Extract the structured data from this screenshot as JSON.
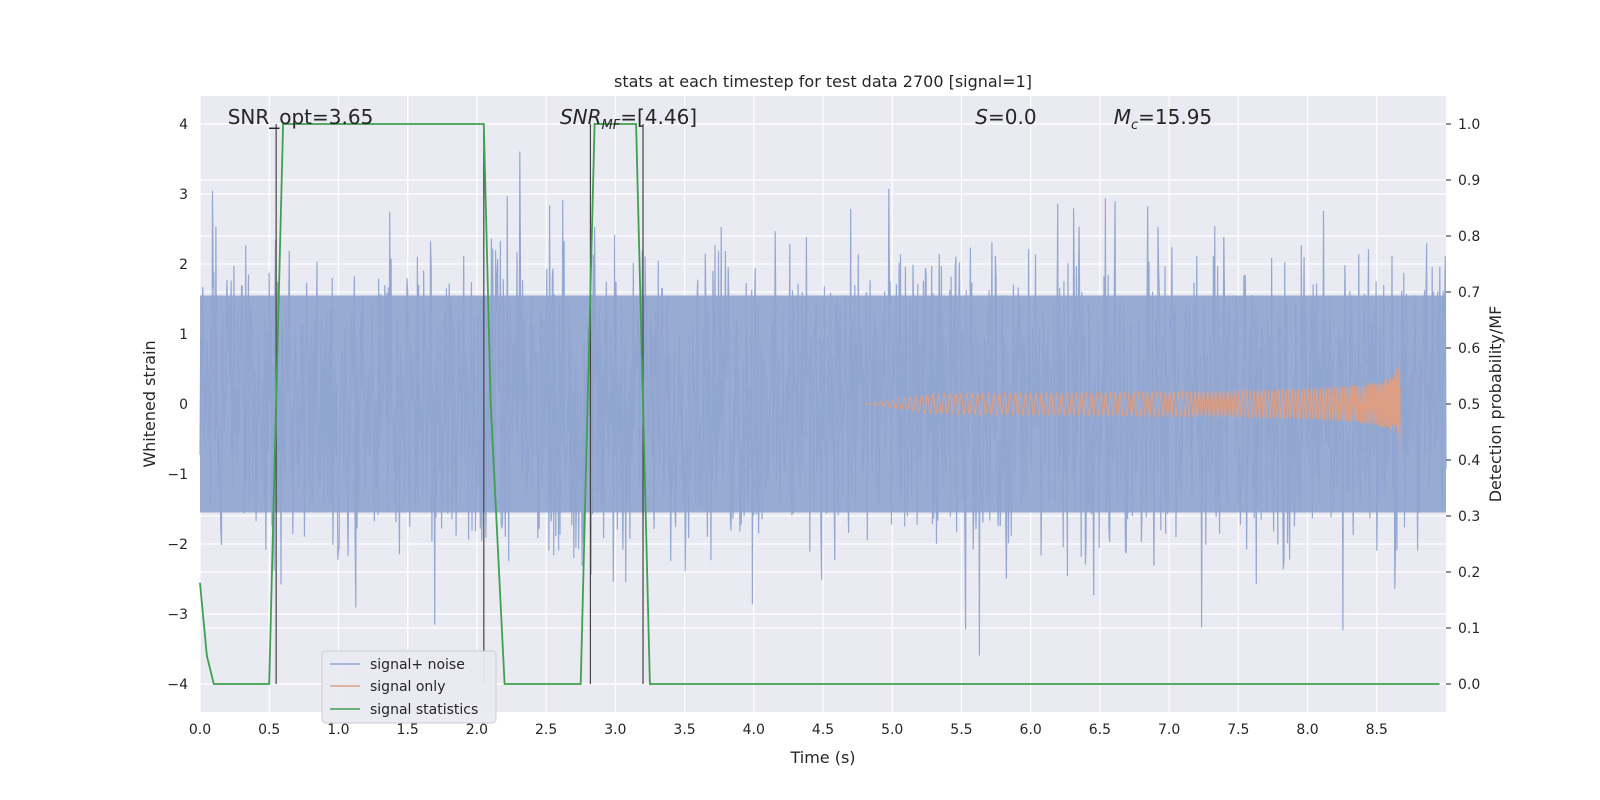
{
  "chart_data": {
    "type": "line",
    "title": "stats at each timestep for test data 2700 [signal=1]",
    "xlabel": "Time (s)",
    "ylabel_left": "Whitened strain",
    "ylabel_right": "Detection probability/MF",
    "xlim": [
      0,
      9.0
    ],
    "ylim_left": [
      -4.4,
      4.4
    ],
    "ylim_right": [
      -0.05,
      1.05
    ],
    "x_ticks": [
      0.0,
      0.5,
      1.0,
      1.5,
      2.0,
      2.5,
      3.0,
      3.5,
      4.0,
      4.5,
      5.0,
      5.5,
      6.0,
      6.5,
      7.0,
      7.5,
      8.0,
      8.5
    ],
    "x_tick_labels": [
      "0.0",
      "0.5",
      "1.0",
      "1.5",
      "2.0",
      "2.5",
      "3.0",
      "3.5",
      "4.0",
      "4.5",
      "5.0",
      "5.5",
      "6.0",
      "6.5",
      "7.0",
      "7.5",
      "8.0",
      "8.5"
    ],
    "y_left_ticks": [
      4,
      3,
      2,
      1,
      0,
      -1,
      -2,
      -3,
      -4
    ],
    "y_left_tick_labels": [
      "4",
      "3",
      "2",
      "1",
      "0",
      "−1",
      "−2",
      "−3",
      "−4"
    ],
    "y_right_ticks": [
      1.0,
      0.9,
      0.8,
      0.7,
      0.6,
      0.5,
      0.4,
      0.3,
      0.2,
      0.1,
      0.0
    ],
    "y_right_tick_labels": [
      "1.0",
      "0.9",
      "0.8",
      "0.7",
      "0.6",
      "0.5",
      "0.4",
      "0.3",
      "0.2",
      "0.1",
      "0.0"
    ],
    "grid": true,
    "legend_position": "lower-left",
    "annotations": [
      {
        "x": 0.2,
        "text": "SNR_opt=3.65",
        "italic": false
      },
      {
        "x": 2.6,
        "text": "SNR_MF=[4.46]",
        "italic": true
      },
      {
        "x": 5.6,
        "text": "S=0.0",
        "italic": true
      },
      {
        "x": 6.6,
        "text": "M_c=15.95",
        "italic": true
      }
    ],
    "series": [
      {
        "name": "signal+ noise",
        "color": "#8fa4cf",
        "description": "whitened strain noise, roughly between -3.5 and 4 at each timestep"
      },
      {
        "name": "signal only",
        "color": "#dd9f84",
        "chirp": {
          "start": 4.8,
          "end": 8.67,
          "peak_amplitude": 0.8
        }
      },
      {
        "name": "signal statistics",
        "color": "#3fa14f",
        "x": [
          0.0,
          0.05,
          0.1,
          0.15,
          0.5,
          0.55,
          0.6,
          0.65,
          2.05,
          2.1,
          2.2,
          2.75,
          2.8,
          2.85,
          3.15,
          3.2,
          3.25,
          3.3,
          8.95
        ],
        "y": [
          0.18,
          0.05,
          0.0,
          0.0,
          0.0,
          0.5,
          1.0,
          1.0,
          1.0,
          0.5,
          0.0,
          0.0,
          0.5,
          1.0,
          1.0,
          0.5,
          0.0,
          0.0,
          0.0
        ]
      }
    ],
    "vertical_markers": [
      0.55,
      2.05,
      2.82,
      3.2
    ]
  }
}
